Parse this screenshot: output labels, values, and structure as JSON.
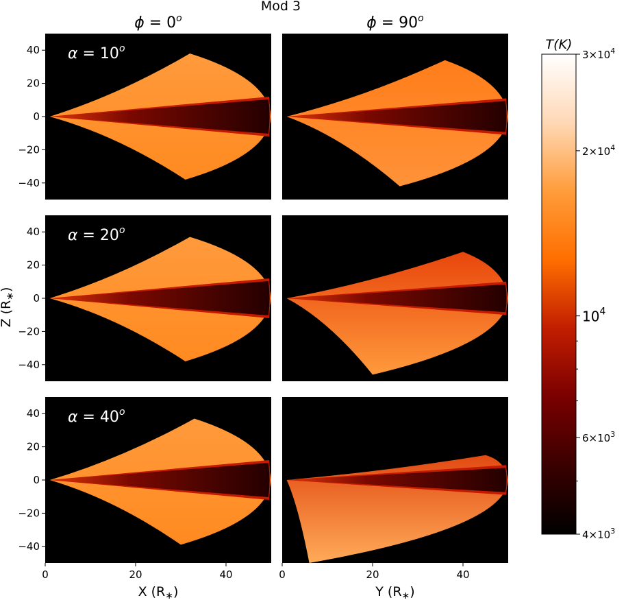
{
  "title": "Mod 3",
  "columns": [
    {
      "var": "ϕ",
      "value": "0",
      "unit": "o"
    },
    {
      "var": "ϕ",
      "value": "90",
      "unit": "o"
    }
  ],
  "rows": [
    {
      "var": "α",
      "value": "10",
      "unit": "o"
    },
    {
      "var": "α",
      "value": "20",
      "unit": "o"
    },
    {
      "var": "α",
      "value": "40",
      "unit": "o"
    }
  ],
  "ylabel": "Z (R",
  "ylabel_sub": "∗",
  "xlabels": [
    {
      "text": "X (R",
      "sub": "∗"
    },
    {
      "text": "Y (R",
      "sub": "∗"
    }
  ],
  "colorbar": {
    "label": "T(K)",
    "scale": "log",
    "range": [
      4000,
      30000
    ],
    "ticks": [
      {
        "value": 30000,
        "mant": "3",
        "exp": "4"
      },
      {
        "value": 20000,
        "mant": "2",
        "exp": "4"
      },
      {
        "value": 10000,
        "mant": "",
        "exp": "4"
      },
      {
        "value": 6000,
        "mant": "6",
        "exp": "3"
      },
      {
        "value": 4000,
        "mant": "4",
        "exp": "3"
      }
    ],
    "colormap": "gist_heat",
    "colors": [
      "#000000",
      "#3a0000",
      "#7a0000",
      "#c21e00",
      "#ff6e00",
      "#ff9c3a",
      "#ffd8b5",
      "#ffffff"
    ]
  },
  "chart_data": {
    "type": "heatmap",
    "layout": "3x2 panel grid",
    "xlim": [
      0,
      50
    ],
    "ylim": [
      -50,
      50
    ],
    "xticks": [
      0,
      20,
      40
    ],
    "yticks": [
      40,
      20,
      0,
      -20,
      -40
    ],
    "background": "#000000",
    "panels": [
      {
        "row": 0,
        "col": 0,
        "apex": [
          1,
          0
        ],
        "top": [
          32,
          38
        ],
        "bottom": [
          31,
          -38
        ],
        "right_x": 50,
        "disk_half": 12,
        "band_colors": [
          "#ff9a3c",
          "#ff8a20"
        ]
      },
      {
        "row": 0,
        "col": 1,
        "apex": [
          1,
          0
        ],
        "top": [
          36,
          34
        ],
        "bottom": [
          26,
          -42
        ],
        "right_x": 50,
        "disk_half": 11,
        "band_colors": [
          "#ff7d1a",
          "#ff9238"
        ]
      },
      {
        "row": 1,
        "col": 0,
        "apex": [
          1,
          0
        ],
        "top": [
          32,
          37
        ],
        "bottom": [
          31,
          -38
        ],
        "right_x": 50,
        "disk_half": 12,
        "band_colors": [
          "#ff9a3c",
          "#ff8a20"
        ]
      },
      {
        "row": 1,
        "col": 1,
        "apex": [
          1,
          0
        ],
        "top": [
          40,
          28
        ],
        "bottom": [
          20,
          -46
        ],
        "right_x": 50,
        "disk_half": 10,
        "band_colors": [
          "#e8460c",
          "#ff9a3c"
        ]
      },
      {
        "row": 2,
        "col": 0,
        "apex": [
          1,
          0
        ],
        "top": [
          33,
          37
        ],
        "bottom": [
          30,
          -39
        ],
        "right_x": 50,
        "disk_half": 12,
        "band_colors": [
          "#ff9a3c",
          "#ff8a20"
        ]
      },
      {
        "row": 2,
        "col": 1,
        "apex": [
          1,
          0
        ],
        "top": [
          45,
          15
        ],
        "bottom": [
          6,
          -50
        ],
        "right_x": 50,
        "disk_half": 9,
        "band_colors": [
          "#e24a12",
          "#ffab58"
        ]
      }
    ]
  }
}
